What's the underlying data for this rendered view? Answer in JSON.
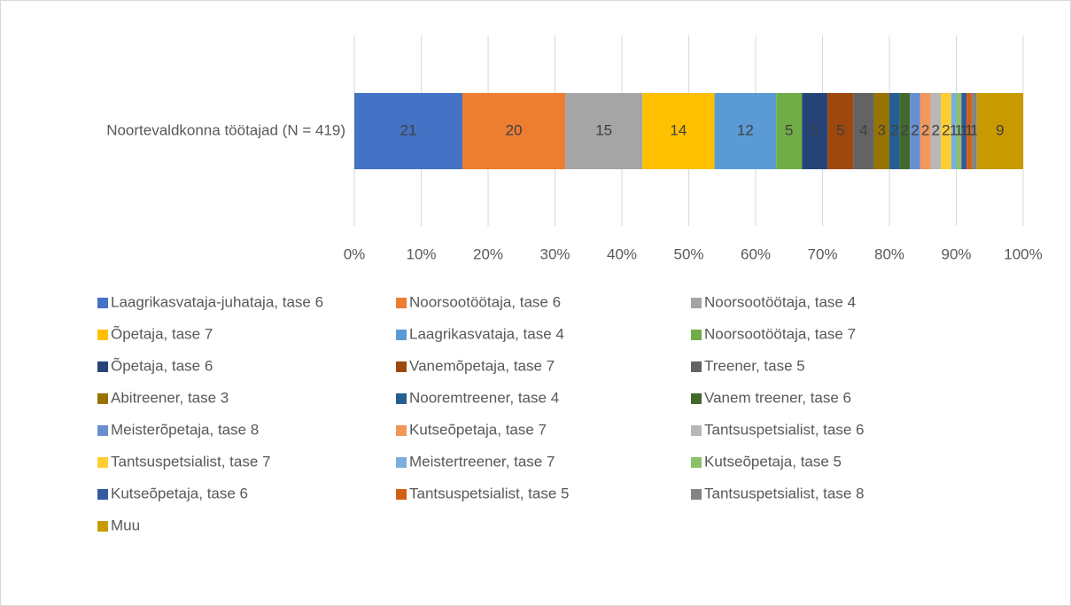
{
  "chart_data": {
    "type": "stacked_bar_100",
    "categories": [
      "Noortevaldkonna töötajad (N = 419)"
    ],
    "series": [
      {
        "name": "Laagrikasvataja-juhataja, tase 6",
        "color": "#4472c4",
        "values": [
          21
        ]
      },
      {
        "name": "Noorsootöötaja, tase 6",
        "color": "#ed7d31",
        "values": [
          20
        ]
      },
      {
        "name": "Noorsootöötaja, tase 4",
        "color": "#a5a5a5",
        "values": [
          15
        ]
      },
      {
        "name": "Õpetaja, tase 7",
        "color": "#ffc000",
        "values": [
          14
        ]
      },
      {
        "name": "Laagrikasvataja, tase 4",
        "color": "#5b9bd5",
        "values": [
          12
        ]
      },
      {
        "name": "Noorsootöötaja, tase 7",
        "color": "#70ad47",
        "values": [
          5
        ]
      },
      {
        "name": "Õpetaja, tase 6",
        "color": "#264478",
        "values": [
          5
        ]
      },
      {
        "name": "Vanemõpetaja, tase 7",
        "color": "#9e480e",
        "values": [
          5
        ]
      },
      {
        "name": "Treener, tase 5",
        "color": "#636363",
        "values": [
          4
        ]
      },
      {
        "name": "Abitreener, tase 3",
        "color": "#997300",
        "values": [
          3
        ]
      },
      {
        "name": "Nooremtreener, tase 4",
        "color": "#255e91",
        "values": [
          2
        ]
      },
      {
        "name": "Vanem treener, tase 6",
        "color": "#43682b",
        "values": [
          2
        ]
      },
      {
        "name": "Meisterõpetaja, tase 8",
        "color": "#698ed0",
        "values": [
          2
        ]
      },
      {
        "name": "Kutseõpetaja, tase 7",
        "color": "#f1975a",
        "values": [
          2
        ]
      },
      {
        "name": "Tantsuspetsialist, tase 6",
        "color": "#b7b7b7",
        "values": [
          2
        ]
      },
      {
        "name": "Tantsuspetsialist, tase 7",
        "color": "#ffcd33",
        "values": [
          2
        ]
      },
      {
        "name": "Meistertreener, tase 7",
        "color": "#7cafdd",
        "values": [
          1
        ]
      },
      {
        "name": "Kutseõpetaja, tase 5",
        "color": "#8cc168",
        "values": [
          1
        ]
      },
      {
        "name": "Kutseõpetaja, tase 6",
        "color": "#335aa1",
        "values": [
          1
        ]
      },
      {
        "name": "Tantsuspetsialist, tase 5",
        "color": "#d26012",
        "values": [
          1
        ]
      },
      {
        "name": "Tantsuspetsialist, tase 8",
        "color": "#848484",
        "values": [
          1
        ]
      },
      {
        "name": "Muu",
        "color": "#c99a00",
        "values": [
          9
        ]
      }
    ],
    "xlim": [
      0,
      100
    ],
    "xticks": [
      {
        "value": 0,
        "label": "0%"
      },
      {
        "value": 10,
        "label": "10%"
      },
      {
        "value": 20,
        "label": "20%"
      },
      {
        "value": 30,
        "label": "30%"
      },
      {
        "value": 40,
        "label": "40%"
      },
      {
        "value": 50,
        "label": "50%"
      },
      {
        "value": 60,
        "label": "60%"
      },
      {
        "value": 70,
        "label": "70%"
      },
      {
        "value": 80,
        "label": "80%"
      },
      {
        "value": 90,
        "label": "90%"
      },
      {
        "value": 100,
        "label": "100%"
      }
    ],
    "grid": true,
    "legend": "bottom"
  }
}
